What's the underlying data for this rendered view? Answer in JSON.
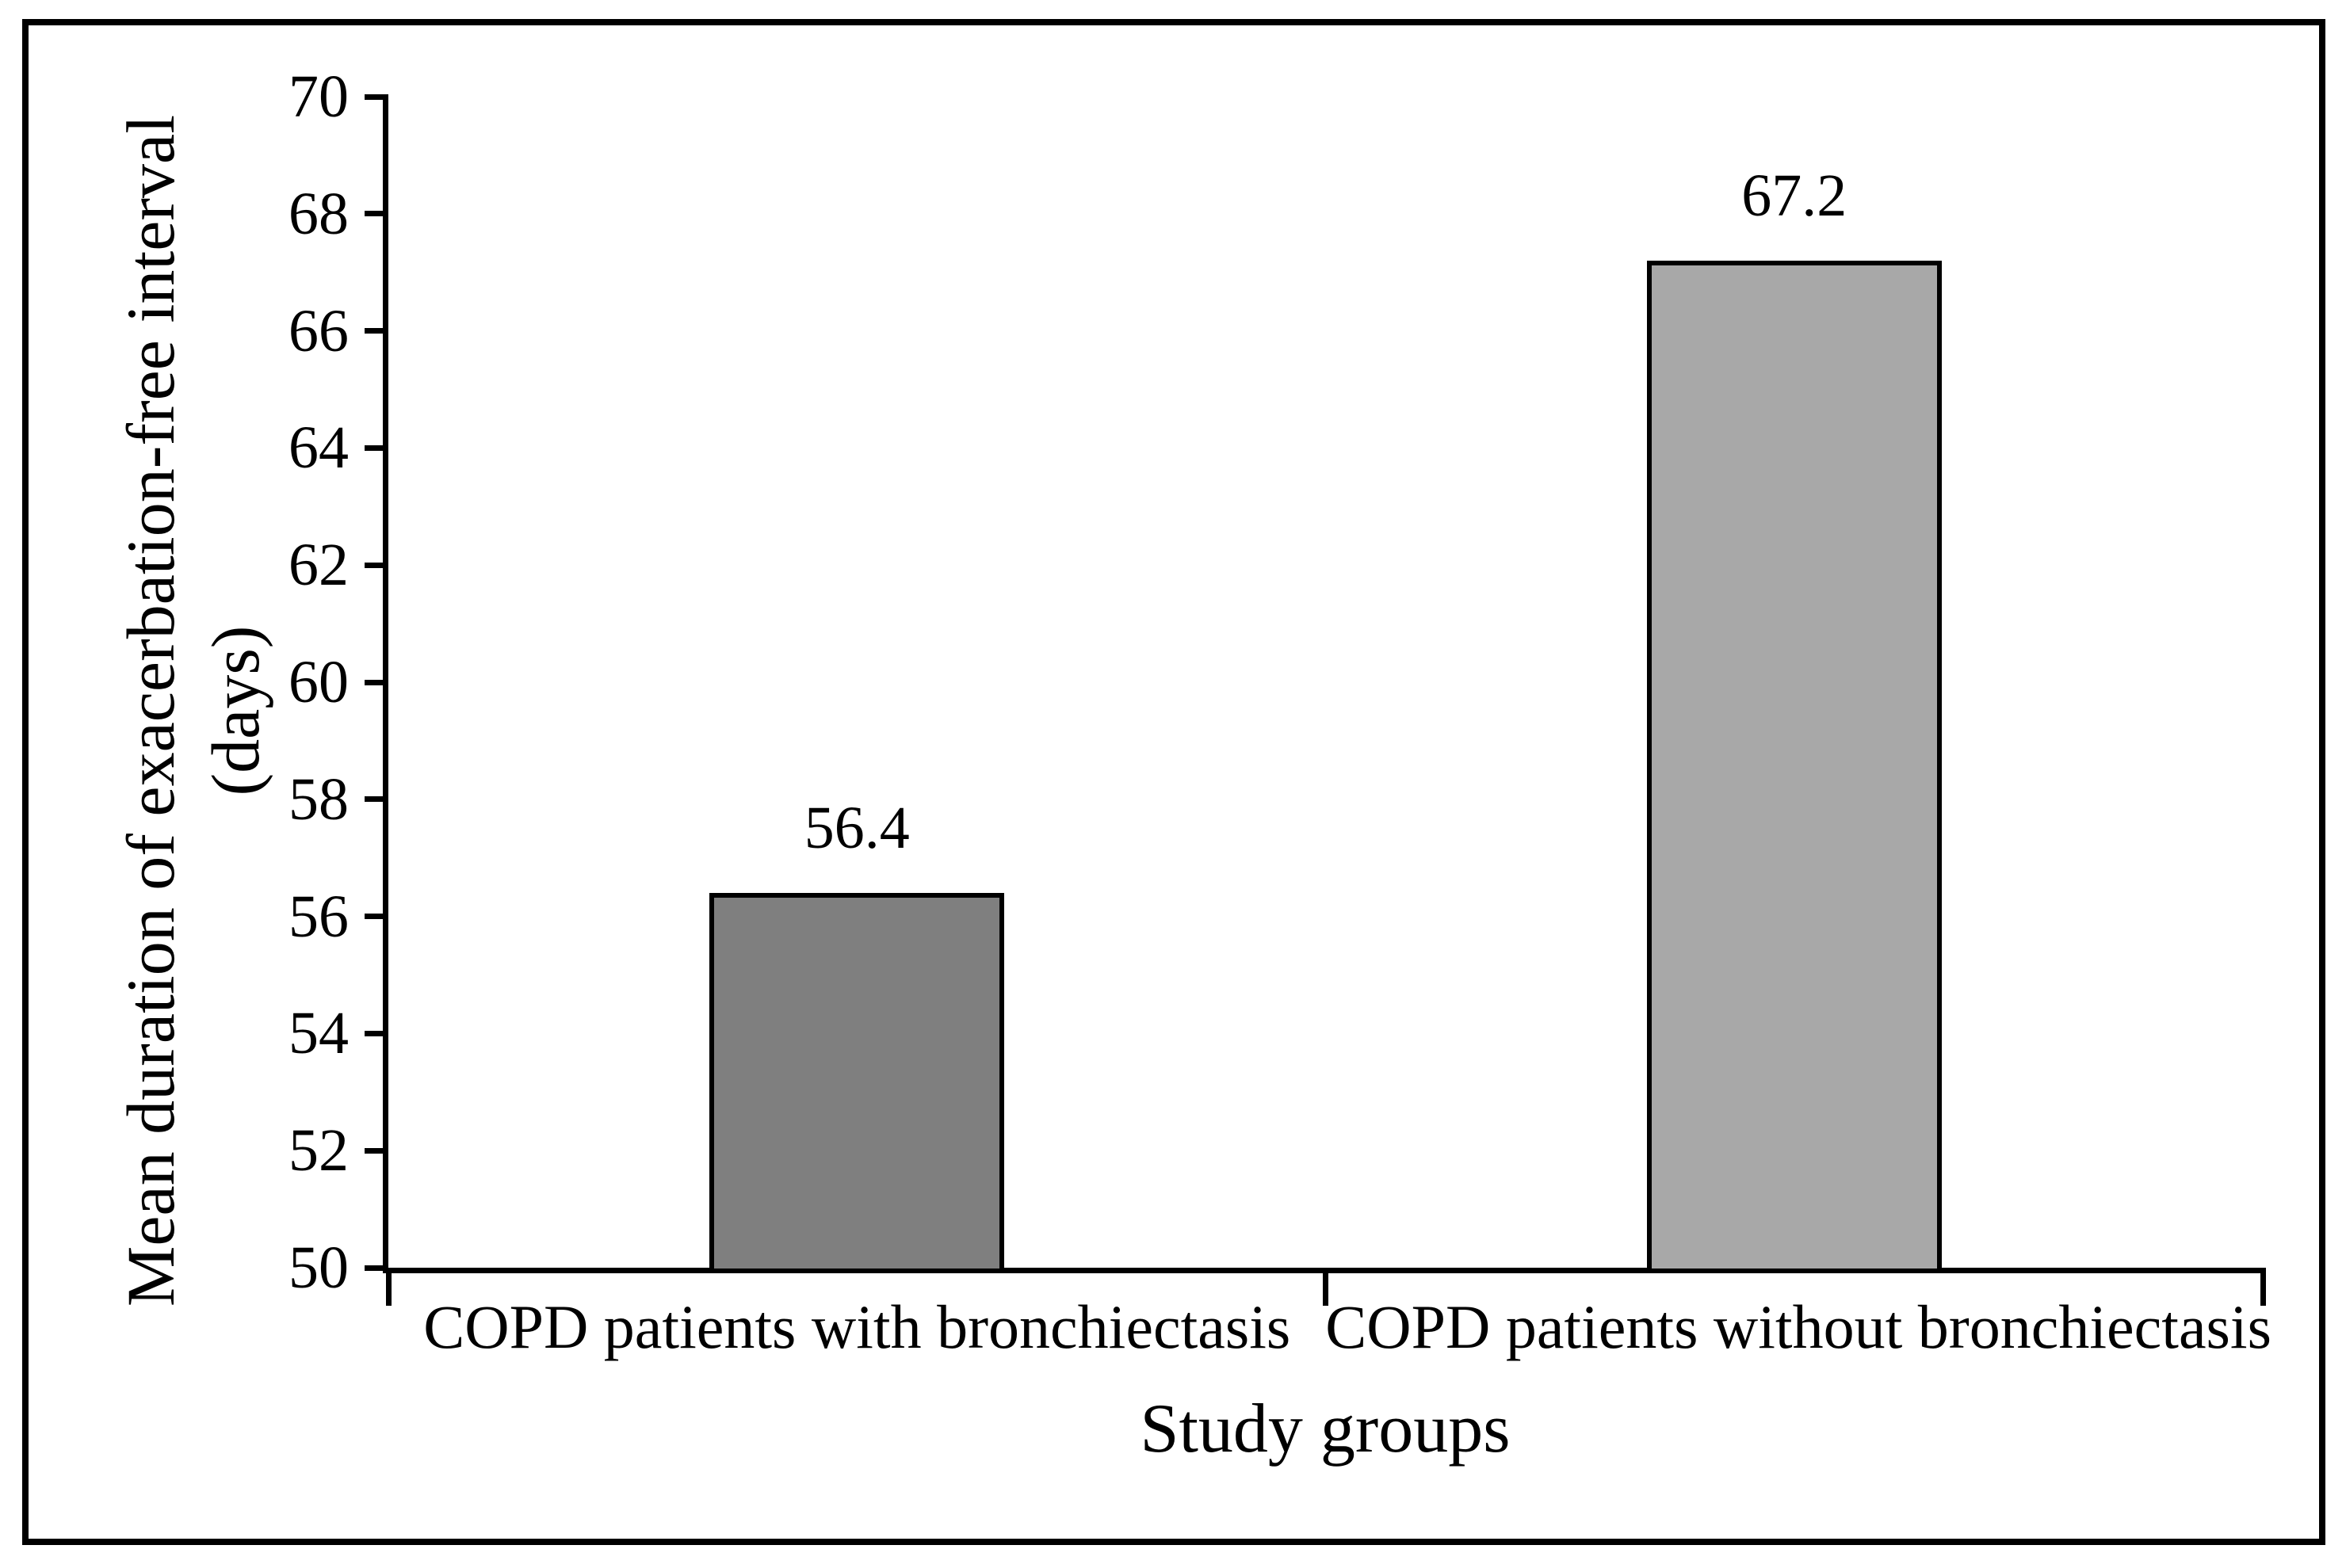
{
  "chart_data": {
    "type": "bar",
    "title": "",
    "categories": [
      "COPD patients with bronchiectasis",
      "COPD patients without bronchiectasis"
    ],
    "values": [
      56.4,
      67.2
    ],
    "value_labels": [
      "56.4",
      "67.2"
    ],
    "bar_colors": [
      "#7F7F7F",
      "#A8A8A8"
    ],
    "bar_border_color": "#000000",
    "xlabel": "Study groups",
    "ylabel_line1": "Mean duration of exacerbation-free interval",
    "ylabel_line2": "(days)",
    "ylim": [
      50,
      70
    ],
    "yticks": [
      50,
      52,
      54,
      56,
      58,
      60,
      62,
      64,
      66,
      68,
      70
    ],
    "grid": false,
    "legend_position": "none",
    "axis_color": "#000000"
  }
}
